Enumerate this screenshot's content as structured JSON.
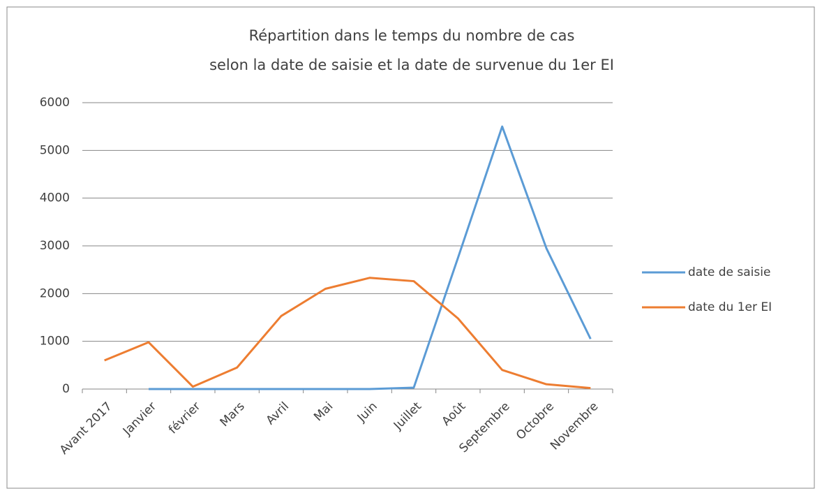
{
  "chart_data": {
    "type": "line",
    "title": [
      "Répartition dans le temps du nombre de cas",
      "selon la date de saisie et la date de survenue du 1er EI"
    ],
    "categories": [
      "Avant 2017",
      "Janvier",
      "février",
      "Mars",
      "Avril",
      "Mai",
      "Juin",
      "Juillet",
      "Août",
      "Septembre",
      "Octobre",
      "Novembre"
    ],
    "series": [
      {
        "name": "date de saisie",
        "color": "#5b9bd5",
        "values": [
          null,
          0,
          0,
          0,
          0,
          0,
          0,
          30,
          2750,
          5500,
          2950,
          1050
        ]
      },
      {
        "name": "date du 1er EI",
        "color": "#ed7d31",
        "values": [
          600,
          980,
          50,
          450,
          1530,
          2100,
          2330,
          2260,
          1480,
          400,
          100,
          20
        ]
      }
    ],
    "ylim": [
      0,
      6000
    ],
    "yticks": [
      0,
      1000,
      2000,
      3000,
      4000,
      5000,
      6000
    ],
    "grid": true,
    "legend": "right"
  }
}
